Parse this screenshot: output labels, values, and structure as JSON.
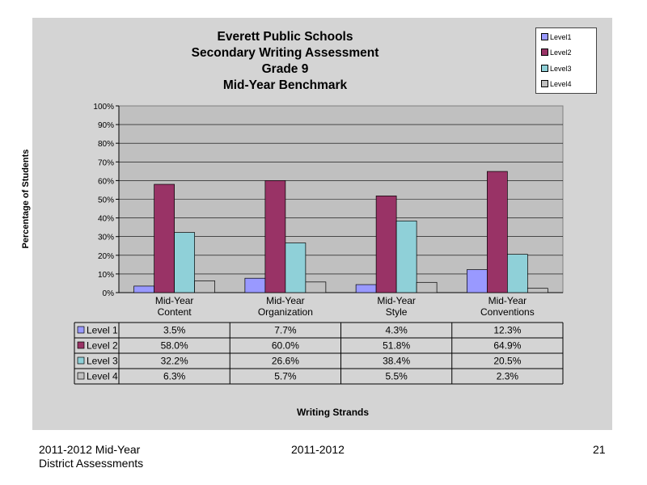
{
  "chart_data": {
    "type": "bar",
    "title_lines": [
      "Everett Public Schools",
      "Secondary Writing Assessment",
      "Grade 9",
      "Mid-Year Benchmark"
    ],
    "ylabel": "Percentage of Students",
    "xlabel": "Writing Strands",
    "ylim": [
      0,
      100
    ],
    "yticks": [
      "0%",
      "10%",
      "20%",
      "30%",
      "40%",
      "50%",
      "60%",
      "70%",
      "80%",
      "90%",
      "100%"
    ],
    "categories": [
      [
        "Mid-Year",
        "Content"
      ],
      [
        "Mid-Year",
        "Organization"
      ],
      [
        "Mid-Year",
        "Style"
      ],
      [
        "Mid-Year",
        "Conventions"
      ]
    ],
    "legend_position": "top-right",
    "grid": true,
    "series": [
      {
        "name": "Level 1",
        "legend_label": "Level1",
        "color": "#9999ff",
        "values": [
          3.5,
          7.7,
          4.3,
          12.3
        ],
        "labels": [
          "3.5%",
          "7.7%",
          "4.3%",
          "12.3%"
        ]
      },
      {
        "name": "Level 2",
        "legend_label": "Level2",
        "color": "#993366",
        "values": [
          58.0,
          60.0,
          51.8,
          64.9
        ],
        "labels": [
          "58.0%",
          "60.0%",
          "51.8%",
          "64.9%"
        ]
      },
      {
        "name": "Level 3",
        "legend_label": "Level3",
        "color": "#8fd0d8",
        "values": [
          32.2,
          26.6,
          38.4,
          20.5
        ],
        "labels": [
          "32.2%",
          "26.6%",
          "38.4%",
          "20.5%"
        ]
      },
      {
        "name": "Level 4",
        "legend_label": "Level4",
        "color": "#c0c0c0",
        "values": [
          6.3,
          5.7,
          5.5,
          2.3
        ],
        "labels": [
          "6.3%",
          "5.7%",
          "5.5%",
          "2.3%"
        ]
      }
    ]
  },
  "footer": {
    "left_line1": "2011-2012  Mid-Year",
    "left_line2": "District Assessments",
    "center": "2011-2012",
    "page_number": "21"
  }
}
